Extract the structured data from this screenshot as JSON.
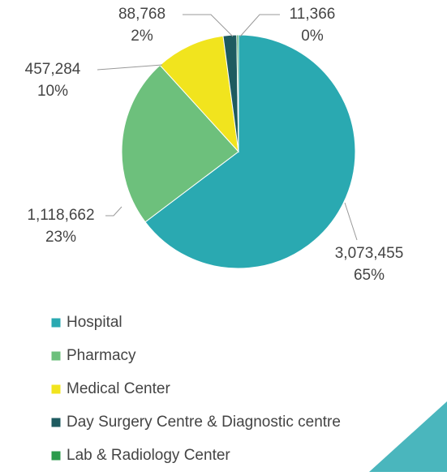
{
  "chart_data": {
    "type": "pie",
    "categories": [
      "Hospital",
      "Pharmacy",
      "Medical Center",
      "Day Surgery Centre & Diagnostic centre",
      "Lab & Radiology Center"
    ],
    "values": [
      3073455,
      1118662,
      457284,
      88768,
      11366
    ],
    "value_labels": [
      "3,073,455",
      "1,118,662",
      "457,284",
      "88,768",
      "11,366"
    ],
    "percent_labels": [
      "65%",
      "23%",
      "10%",
      "2%",
      "0%"
    ],
    "colors": [
      "#2aa9b1",
      "#6dc07c",
      "#f1e41e",
      "#1e5b60",
      "#2c9b4c"
    ],
    "legend": "bottom-left"
  }
}
